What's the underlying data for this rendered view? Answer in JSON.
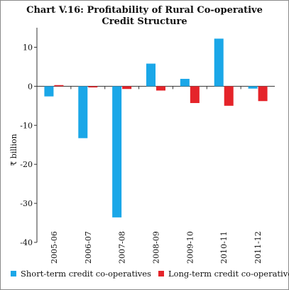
{
  "chart_data": {
    "type": "bar",
    "title": "Chart V.16: Profitability of Rural Co-operative",
    "subtitle": "Credit Structure",
    "ylabel": "₹ billion",
    "xlabel": "",
    "ylim": [
      -40,
      15
    ],
    "yticks": [
      -40,
      -30,
      -20,
      -10,
      0,
      10
    ],
    "grid": false,
    "legend_position": "bottom",
    "categories": [
      "2005-06",
      "2006-07",
      "2007-08",
      "2008-09",
      "2009-10",
      "2010-11",
      "2011-12"
    ],
    "series": [
      {
        "name": "Short-term credit co-operatives",
        "color": "#1aa7e8",
        "values": [
          -2.6,
          -13.3,
          -33.6,
          5.8,
          1.9,
          12.2,
          -0.6
        ]
      },
      {
        "name": "Long-term credit co-operatives",
        "color": "#e5242a",
        "values": [
          0.3,
          -0.3,
          -0.7,
          -1.1,
          -4.3,
          -5.0,
          -3.8
        ]
      }
    ]
  }
}
